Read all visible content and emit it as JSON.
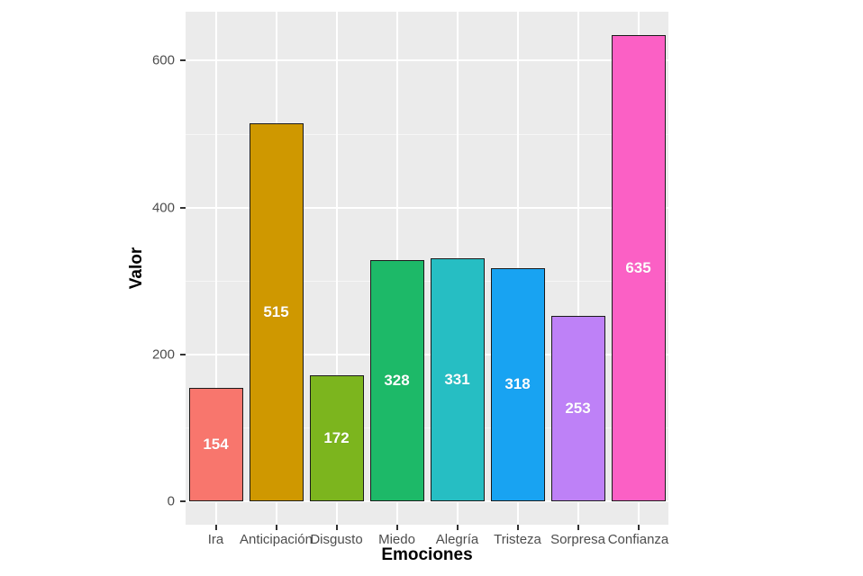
{
  "chart_data": {
    "type": "bar",
    "title": "",
    "xlabel": "Emociones",
    "ylabel": "Valor",
    "categories": [
      "Ira",
      "Anticipación",
      "Disgusto",
      "Miedo",
      "Alegría",
      "Tristeza",
      "Sorpresa",
      "Confianza"
    ],
    "values": [
      154,
      515,
      172,
      328,
      331,
      318,
      253,
      635
    ],
    "bar_colors": [
      "#F8766D",
      "#CF9800",
      "#7CB51E",
      "#1DB968",
      "#26BEC3",
      "#18A3F2",
      "#BE81F7",
      "#FB60C5"
    ],
    "y_ticks": [
      0,
      200,
      400,
      600
    ],
    "y_minor_ticks": [
      100,
      300,
      500
    ],
    "ylim": [
      -31.75,
      666.75
    ],
    "grid": true,
    "legend": "none",
    "bar_label_color": "#FFFFFF",
    "panel_bg": "#EBEBEB",
    "grid_color": "#FFFFFF",
    "axis_text_color": "#4D4D4D",
    "axis_title_color": "#000000",
    "bar_border_color": "#1A1A1A"
  }
}
